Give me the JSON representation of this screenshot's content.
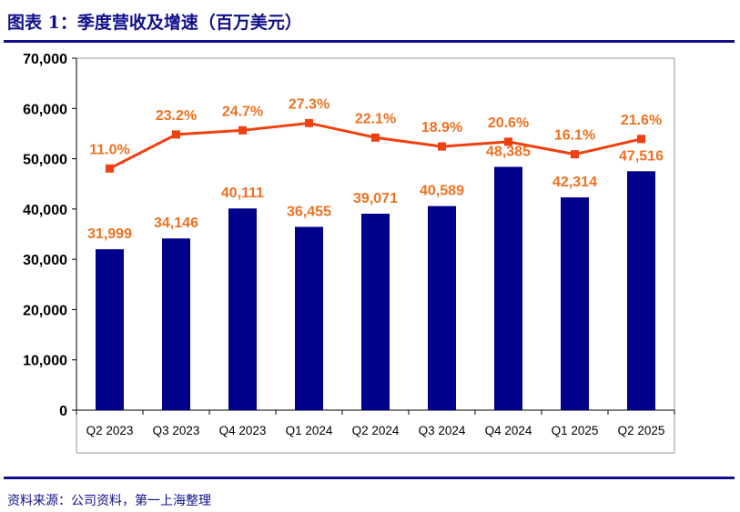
{
  "title": "图表 1：季度营收及增速（百万美元）",
  "source": "资料来源：公司资料，第一上海整理",
  "chart_data": {
    "type": "bar",
    "categories": [
      "Q2 2023",
      "Q3 2023",
      "Q4 2023",
      "Q1 2024",
      "Q2 2024",
      "Q3 2024",
      "Q4 2024",
      "Q1 2025",
      "Q2 2025"
    ],
    "series": [
      {
        "type": "bar",
        "values": [
          31999,
          34146,
          40111,
          36455,
          39071,
          40589,
          48385,
          42314,
          47516
        ],
        "labels": [
          "31,999",
          "34,146",
          "40,111",
          "36,455",
          "39,071",
          "40,589",
          "48,385",
          "42,314",
          "47,516"
        ],
        "color": "#00008b"
      },
      {
        "type": "line",
        "values": [
          11.0,
          23.2,
          24.7,
          27.3,
          22.1,
          18.9,
          20.6,
          16.1,
          21.6
        ],
        "labels": [
          "11.0%",
          "23.2%",
          "24.7%",
          "27.3%",
          "22.1%",
          "18.9%",
          "20.6%",
          "16.1%",
          "21.6%"
        ],
        "color": "#f04010"
      }
    ],
    "ylim": [
      0,
      70000
    ],
    "yticks": [
      "0",
      "10,000",
      "20,000",
      "30,000",
      "40,000",
      "50,000",
      "60,000",
      "70,000"
    ],
    "grid": false,
    "legend": "none"
  }
}
